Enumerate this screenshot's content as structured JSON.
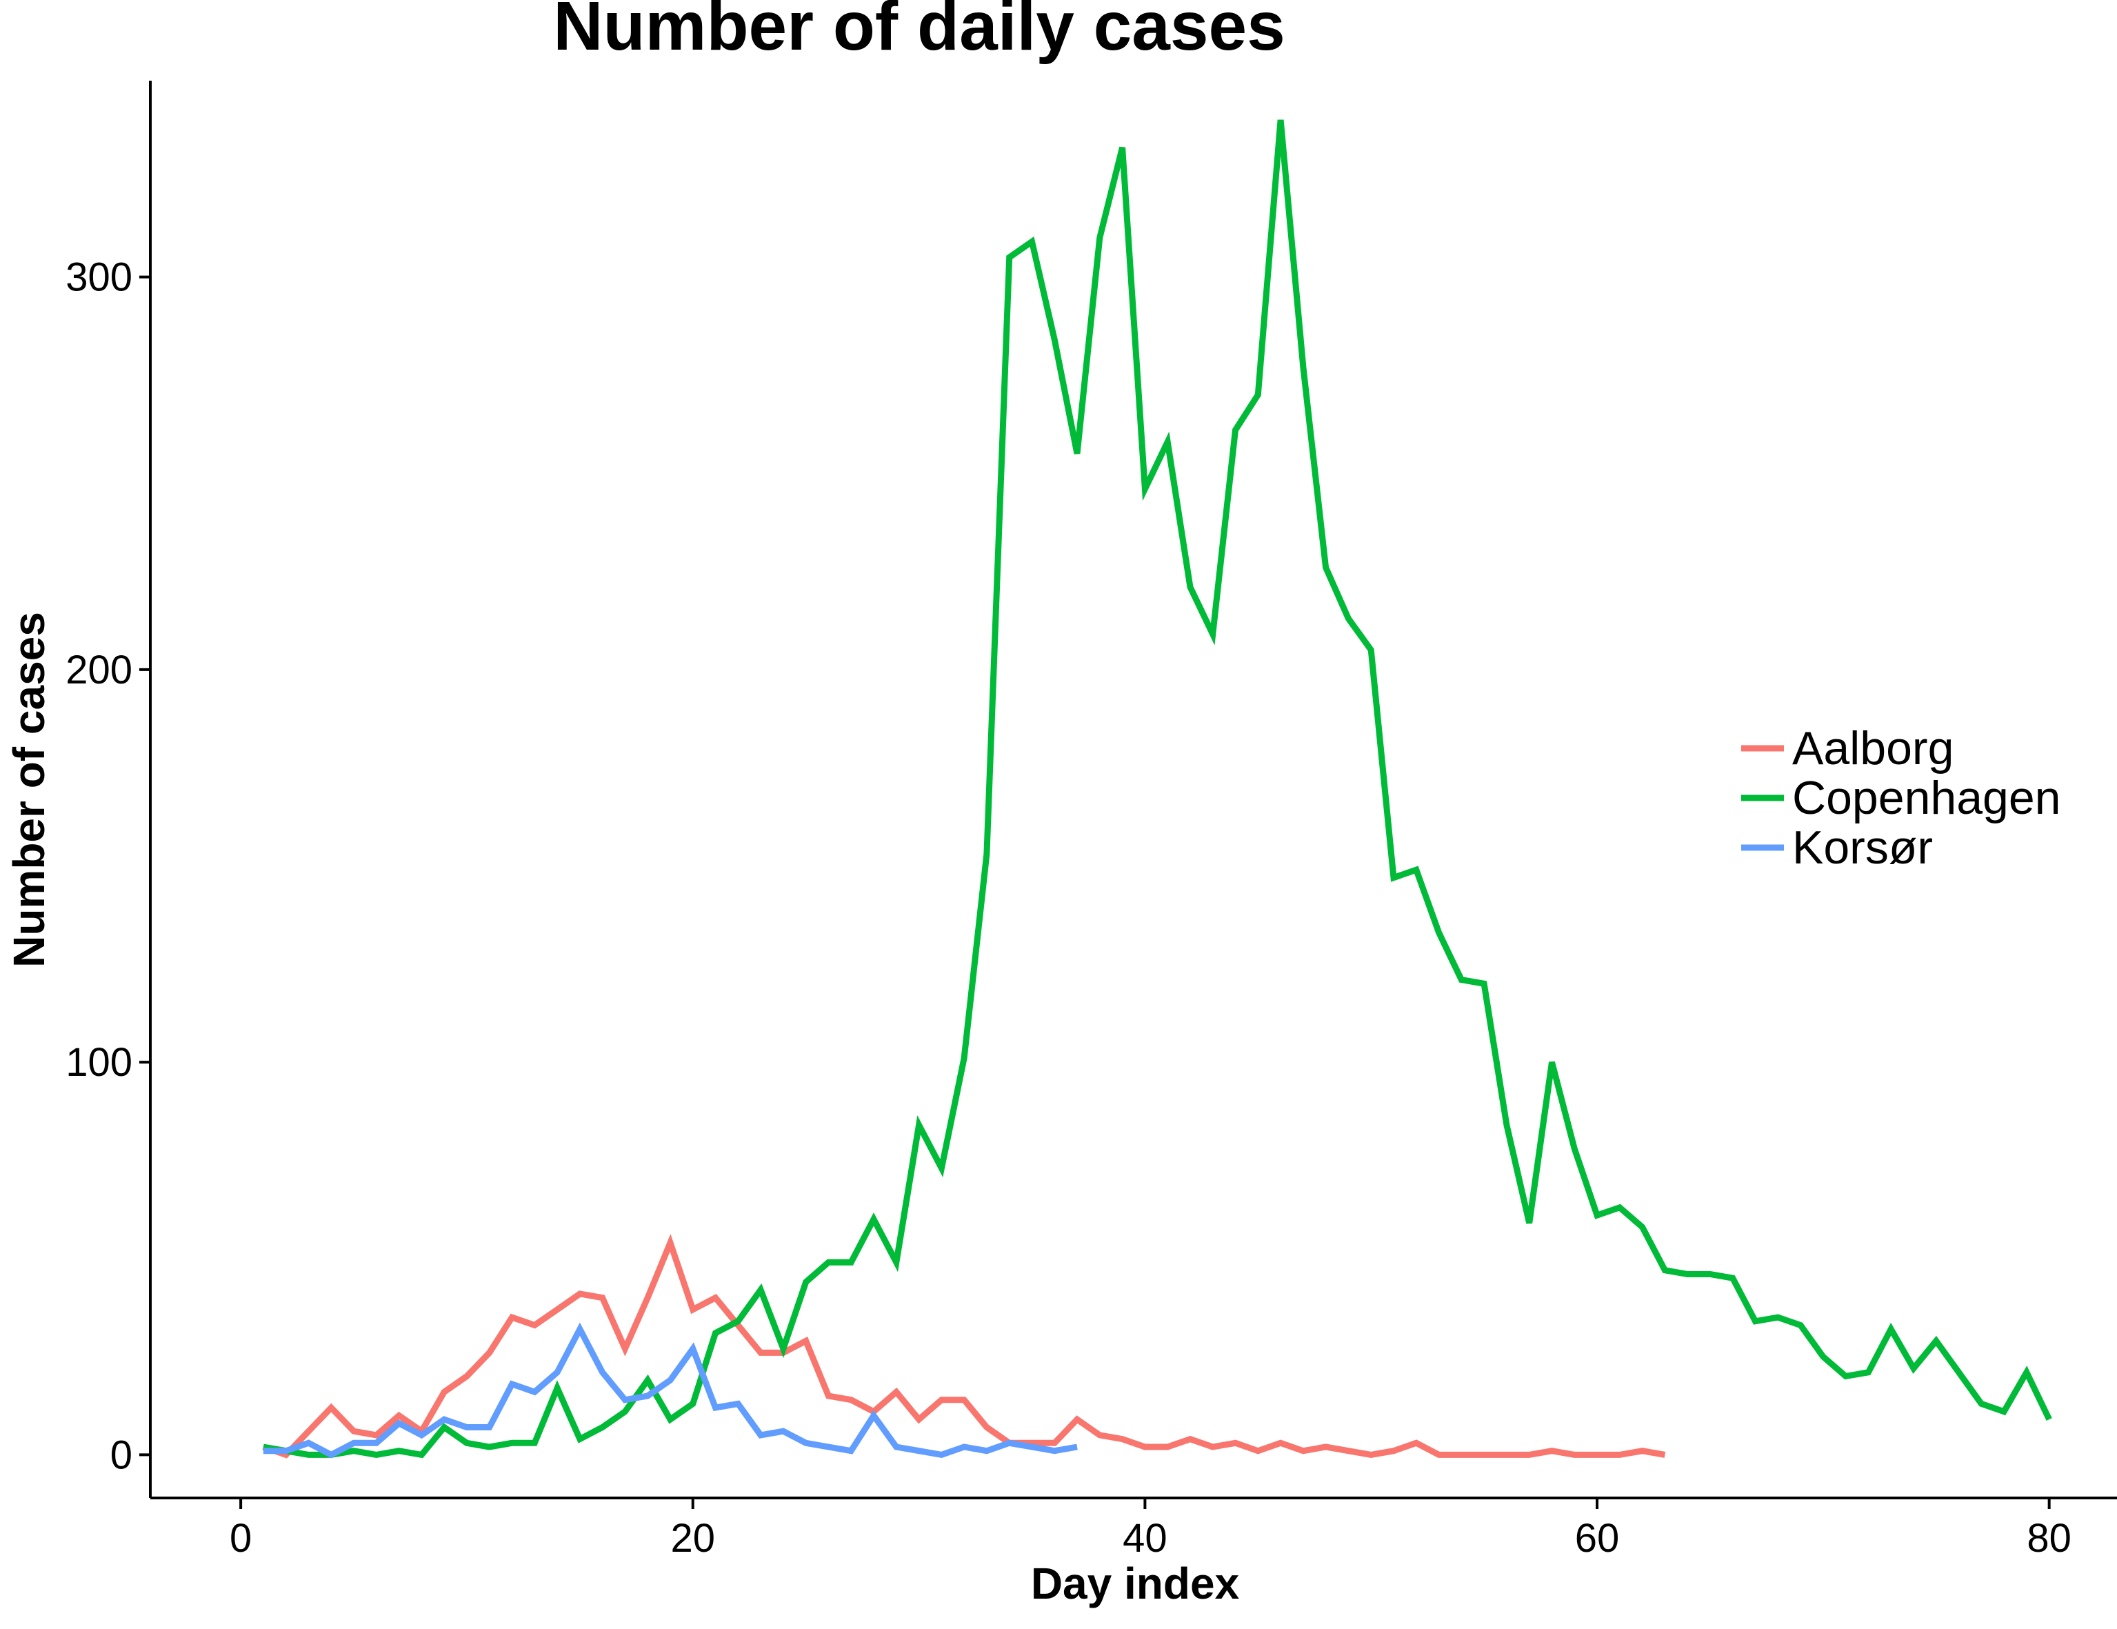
{
  "chart_data": {
    "type": "line",
    "title": "Number of daily cases",
    "xlabel": "Day index",
    "ylabel": "Number of cases",
    "xlim": [
      -4,
      83
    ],
    "ylim": [
      -11,
      350
    ],
    "x_ticks": [
      0,
      20,
      40,
      60,
      80
    ],
    "y_ticks": [
      0,
      100,
      200,
      300
    ],
    "x_tick_labels": [
      "0",
      "20",
      "40",
      "60",
      "80"
    ],
    "y_tick_labels": [
      "0",
      "100",
      "200",
      "300"
    ],
    "grid": false,
    "legend_position": "right",
    "series": [
      {
        "name": "Aalborg",
        "color": "#F8766D",
        "x": [
          1,
          2,
          3,
          4,
          5,
          6,
          7,
          8,
          9,
          10,
          11,
          12,
          13,
          14,
          15,
          16,
          17,
          18,
          19,
          20,
          21,
          22,
          23,
          24,
          25,
          26,
          27,
          28,
          29,
          30,
          31,
          32,
          33,
          34,
          35,
          36,
          37,
          38,
          39,
          40,
          41,
          42,
          43,
          44,
          45,
          46,
          47,
          48,
          49,
          50,
          51,
          52,
          53,
          54,
          55,
          56,
          57,
          58,
          59,
          60,
          61,
          62,
          63
        ],
        "y": [
          2,
          0,
          6,
          12,
          6,
          5,
          10,
          6,
          16,
          20,
          26,
          35,
          33,
          37,
          41,
          40,
          27,
          40,
          54,
          37,
          40,
          33,
          26,
          26,
          29,
          15,
          14,
          11,
          16,
          9,
          14,
          14,
          7,
          3,
          3,
          3,
          9,
          5,
          4,
          2,
          2,
          4,
          2,
          3,
          1,
          3,
          1,
          2,
          1,
          0,
          1,
          3,
          0,
          0,
          0,
          0,
          0,
          1,
          0,
          0,
          0,
          1,
          0
        ]
      },
      {
        "name": "Copenhagen",
        "color": "#00BA38",
        "x": [
          1,
          2,
          3,
          4,
          5,
          6,
          7,
          8,
          9,
          10,
          11,
          12,
          13,
          14,
          15,
          16,
          17,
          18,
          19,
          20,
          21,
          22,
          23,
          24,
          25,
          26,
          27,
          28,
          29,
          30,
          31,
          32,
          33,
          34,
          35,
          36,
          37,
          38,
          39,
          40,
          41,
          42,
          43,
          44,
          45,
          46,
          47,
          48,
          49,
          50,
          51,
          52,
          53,
          54,
          55,
          56,
          57,
          58,
          59,
          60,
          61,
          62,
          63,
          64,
          65,
          66,
          67,
          68,
          69,
          70,
          71,
          72,
          73,
          74,
          75,
          76,
          77,
          78,
          79,
          80
        ],
        "y": [
          2,
          1,
          0,
          0,
          1,
          0,
          1,
          0,
          7,
          3,
          2,
          3,
          3,
          17,
          4,
          7,
          11,
          19,
          9,
          13,
          31,
          34,
          42,
          27,
          44,
          49,
          49,
          60,
          49,
          84,
          73,
          101,
          153,
          305,
          309,
          284,
          255,
          310,
          333,
          246,
          258,
          221,
          209,
          261,
          270,
          340,
          277,
          226,
          213,
          205,
          147,
          149,
          133,
          121,
          120,
          84,
          59,
          100,
          78,
          61,
          63,
          58,
          47,
          46,
          46,
          45,
          34,
          35,
          33,
          25,
          20,
          21,
          32,
          22,
          29,
          21,
          13,
          11,
          21,
          9
        ]
      },
      {
        "name": "Korsør",
        "color": "#619CFF",
        "x": [
          1,
          2,
          3,
          4,
          5,
          6,
          7,
          8,
          9,
          10,
          11,
          12,
          13,
          14,
          15,
          16,
          17,
          18,
          19,
          20,
          21,
          22,
          23,
          24,
          25,
          26,
          27,
          28,
          29,
          30,
          31,
          32,
          33,
          34,
          35,
          36,
          37
        ],
        "y": [
          1,
          1,
          3,
          0,
          3,
          3,
          8,
          5,
          9,
          7,
          7,
          18,
          16,
          21,
          32,
          21,
          14,
          15,
          19,
          27,
          12,
          13,
          5,
          6,
          3,
          2,
          1,
          10,
          2,
          1,
          0,
          2,
          1,
          3,
          2,
          1,
          2
        ]
      }
    ]
  }
}
